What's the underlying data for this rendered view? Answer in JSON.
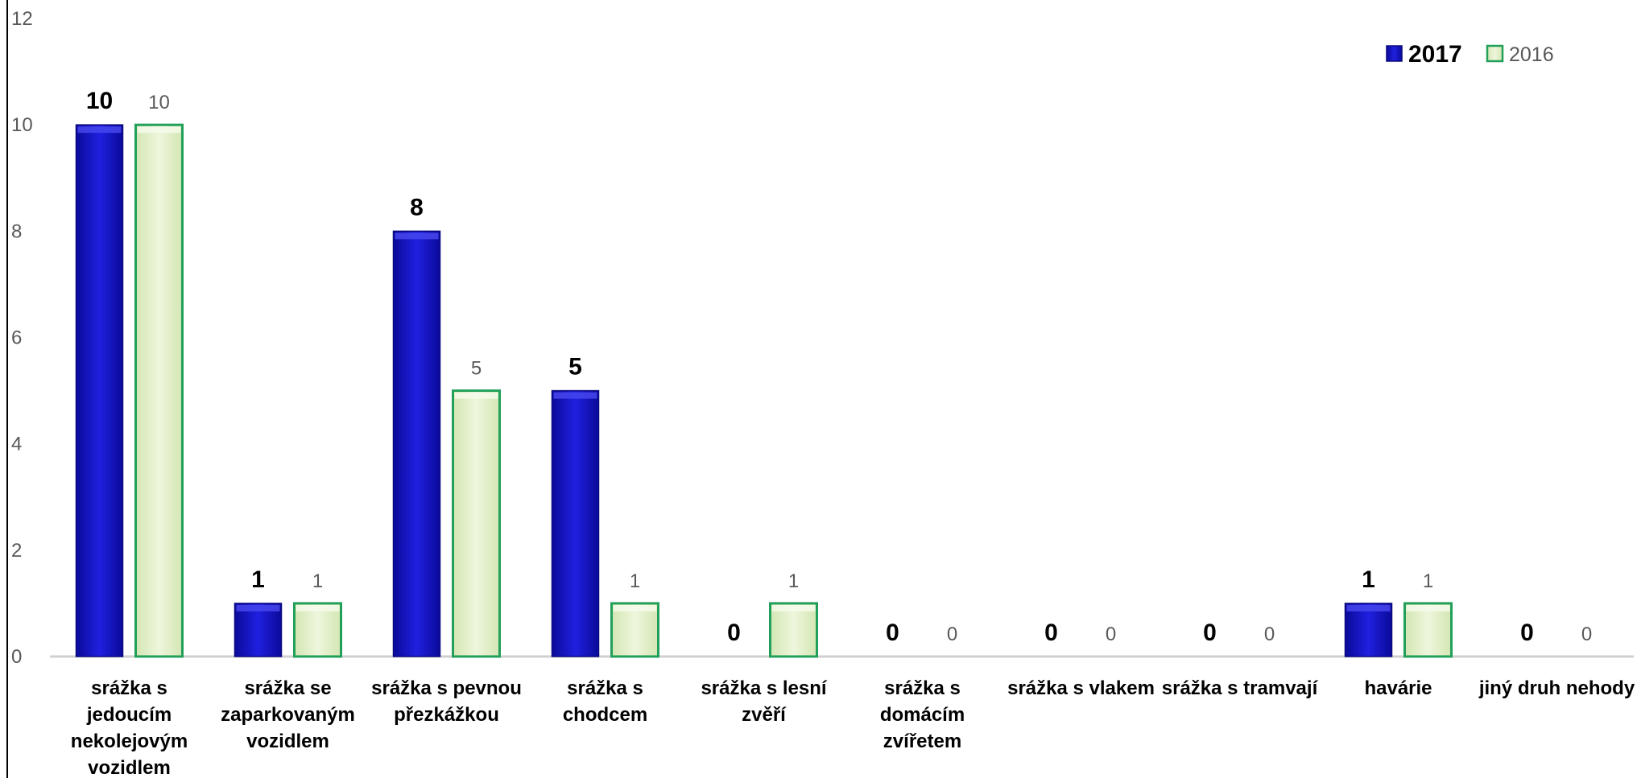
{
  "chart_data": {
    "type": "bar",
    "categories": [
      [
        "srážka s",
        "jedoucím",
        "nekolejovým",
        "vozidlem"
      ],
      [
        "srážka se",
        "zaparkovaným",
        "vozidlem"
      ],
      [
        "srážka s pevnou",
        "přezkážkou"
      ],
      [
        "srážka s",
        "chodcem"
      ],
      [
        "srážka s lesní",
        "zvěří"
      ],
      [
        "srážka s",
        "domácím",
        "zvířetem"
      ],
      [
        "srážka s vlakem"
      ],
      [
        "srážka s tramvají"
      ],
      [
        "havárie"
      ],
      [
        "jiný druh nehody"
      ]
    ],
    "series": [
      {
        "name": "2017",
        "values": [
          10,
          1,
          8,
          5,
          0,
          0,
          0,
          0,
          1,
          0
        ],
        "color": "#1414c8"
      },
      {
        "name": "2016",
        "values": [
          10,
          1,
          5,
          1,
          1,
          0,
          0,
          0,
          1,
          0
        ],
        "color": "#e2efc5",
        "border": "#22a05a"
      }
    ],
    "ylim": [
      0,
      12
    ],
    "yticks": [
      "0",
      "2",
      "4",
      "6",
      "8",
      "10",
      "12"
    ],
    "grid": false,
    "legend": "top-right"
  }
}
